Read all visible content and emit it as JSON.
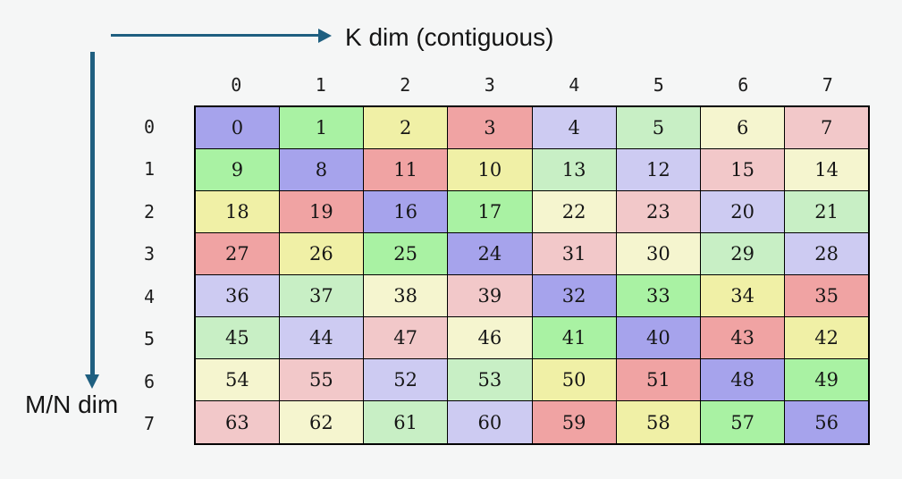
{
  "diagram": {
    "background": "#f5f6f6",
    "arrow_color": "#1f5f80",
    "x_axis_label": "K dim (contiguous)",
    "y_axis_label": "M/N dim",
    "column_headers": [
      "0",
      "1",
      "2",
      "3",
      "4",
      "5",
      "6",
      "7"
    ],
    "row_headers": [
      "0",
      "1",
      "2",
      "3",
      "4",
      "5",
      "6",
      "7"
    ],
    "palette": [
      "#a6a3ec",
      "#a9f2a3",
      "#f0f0a6",
      "#f0a3a3",
      "#cdcbf2",
      "#c8efc5",
      "#f5f5cf",
      "#f2c8c9"
    ],
    "cells": [
      [
        0,
        1,
        2,
        3,
        4,
        5,
        6,
        7
      ],
      [
        9,
        8,
        11,
        10,
        13,
        12,
        15,
        14
      ],
      [
        18,
        19,
        16,
        17,
        22,
        23,
        20,
        21
      ],
      [
        27,
        26,
        25,
        24,
        31,
        30,
        29,
        28
      ],
      [
        36,
        37,
        38,
        39,
        32,
        33,
        34,
        35
      ],
      [
        45,
        44,
        47,
        46,
        41,
        40,
        43,
        42
      ],
      [
        54,
        55,
        52,
        53,
        50,
        51,
        48,
        49
      ],
      [
        63,
        62,
        61,
        60,
        59,
        58,
        57,
        56
      ]
    ]
  }
}
